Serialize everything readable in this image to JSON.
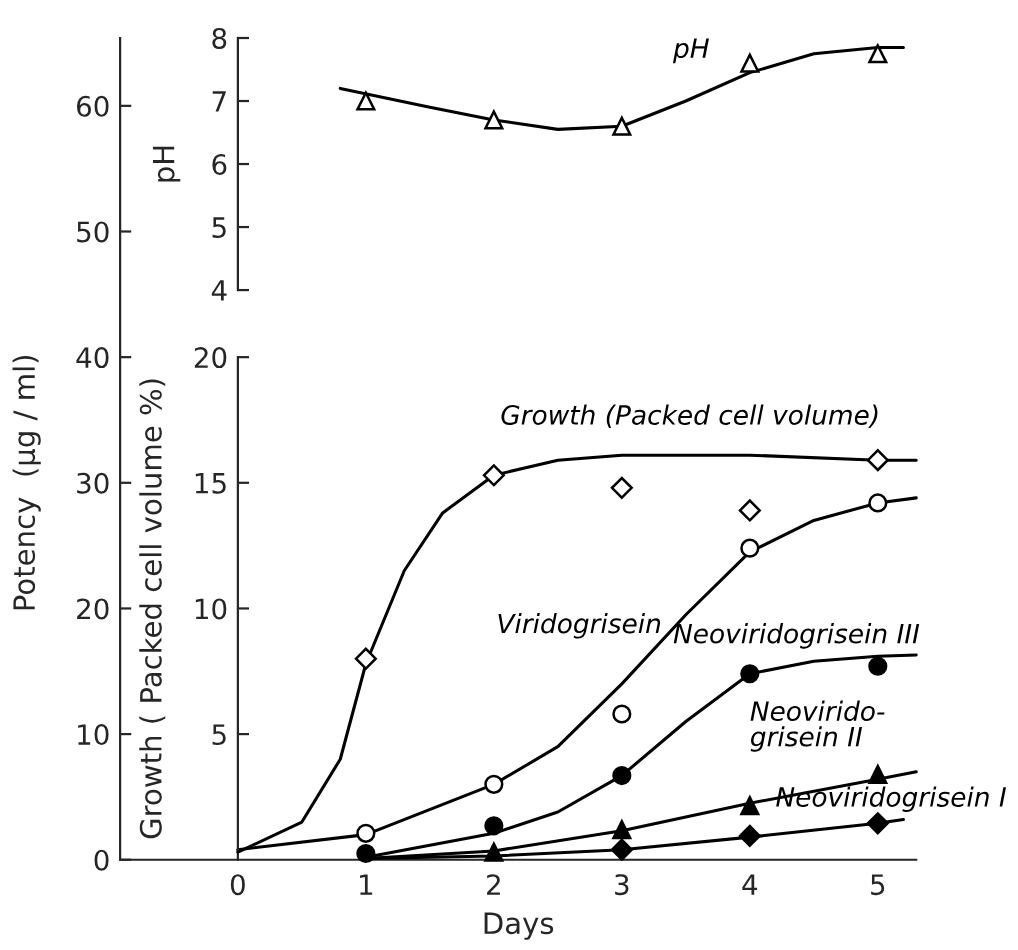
{
  "chart_data": {
    "type": "line",
    "xlabel": "Days",
    "ylabel": "Potency  (μg / ml)",
    "y2label": "Growth ( Packed cell volume %)",
    "y3label": "pH",
    "xlim": [
      -0.92,
      5.3
    ],
    "xticks": [
      0,
      1,
      2,
      3,
      4,
      5
    ],
    "ylim": [
      0,
      65.4
    ],
    "yticks": [
      0,
      10,
      20,
      30,
      40,
      50,
      60
    ],
    "y2lim": [
      0,
      32.7
    ],
    "y2ticks": [
      5,
      10,
      15,
      20
    ],
    "y3lim": [
      -5.04,
      8
    ],
    "y3ticks": [
      4,
      5,
      6,
      7,
      8
    ],
    "series": [
      {
        "type": "scatter",
        "name": "Growth (Packed cell volume)",
        "axis": "y2",
        "marker": "diamond",
        "color": "#ffffff",
        "x": [
          1,
          2,
          3,
          4,
          5
        ],
        "values": [
          8.0,
          15.3,
          14.8,
          13.9,
          15.9
        ]
      },
      {
        "type": "scatter",
        "name": "Viridogrisein",
        "marker": "circle",
        "color": "#ffffff",
        "x": [
          1,
          2,
          3,
          4,
          5
        ],
        "values": [
          2.1,
          6.0,
          11.6,
          24.8,
          28.4
        ]
      },
      {
        "type": "scatter",
        "name": "Neoviridogrisein III",
        "marker": "circle",
        "color": "#000000",
        "x": [
          1,
          2,
          3,
          4,
          5
        ],
        "values": [
          0.5,
          2.7,
          6.7,
          14.8,
          15.4
        ]
      },
      {
        "type": "scatter",
        "name": "Neovirido-\ngrisein II",
        "marker": "triangle",
        "color": "#000000",
        "x": [
          2,
          3,
          4,
          5
        ],
        "values": [
          0.6,
          2.4,
          4.3,
          6.8
        ]
      },
      {
        "type": "scatter",
        "name": "Neoviridogrisein I",
        "marker": "diamond",
        "color": "#000000",
        "x": [
          3,
          4,
          5
        ],
        "values": [
          0.8,
          1.9,
          2.9
        ]
      },
      {
        "type": "scatter",
        "name": "pH",
        "axis": "y3",
        "marker": "triangle",
        "color": "#ffffff",
        "x": [
          1,
          2,
          3,
          4,
          5
        ],
        "values": [
          7.0,
          6.7,
          6.6,
          7.6,
          7.75
        ]
      },
      {
        "axis": "y2",
        "color": "#000000",
        "x": [
          0,
          0.5,
          0.8,
          1,
          1.3,
          1.6,
          2,
          2.5,
          3,
          4,
          5,
          5.3
        ],
        "values": [
          0.3,
          1.5,
          4,
          7.8,
          11.5,
          13.8,
          15.3,
          15.9,
          16.1,
          16.1,
          15.9,
          15.9
        ]
      },
      {
        "color": "#000000",
        "x": [
          0,
          1,
          2,
          2.5,
          3,
          3.5,
          4,
          4.5,
          5,
          5.3
        ],
        "values": [
          0.8,
          2.0,
          6.0,
          9,
          14,
          19.5,
          24.5,
          27,
          28.4,
          28.8
        ]
      },
      {
        "color": "#000000",
        "x": [
          1,
          2,
          2.5,
          3,
          3.5,
          4,
          4.5,
          5,
          5.3
        ],
        "values": [
          0.2,
          2.1,
          3.8,
          6.7,
          11,
          14.8,
          15.8,
          16.2,
          16.3
        ]
      },
      {
        "color": "#000000",
        "x": [
          1,
          2,
          3,
          4,
          5,
          5.3
        ],
        "values": [
          0.1,
          0.7,
          2.3,
          4.5,
          6.4,
          7.0
        ]
      },
      {
        "color": "#000000",
        "x": [
          1,
          2,
          3,
          4,
          5,
          5.2
        ],
        "values": [
          0.1,
          0.3,
          0.8,
          1.8,
          2.9,
          3.2
        ]
      },
      {
        "axis": "y3",
        "color": "#000000",
        "x": [
          0.8,
          1.5,
          2,
          2.5,
          3,
          3.5,
          4,
          4.5,
          5,
          5.2
        ],
        "values": [
          7.2,
          6.9,
          6.7,
          6.55,
          6.6,
          7.0,
          7.45,
          7.75,
          7.85,
          7.85
        ]
      }
    ]
  }
}
